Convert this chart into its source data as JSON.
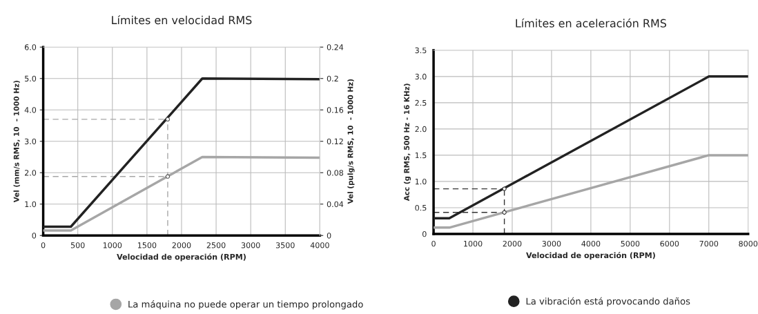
{
  "chart_data": [
    {
      "type": "line",
      "title": "Límites en velocidad RMS",
      "xlabel": "Velocidad de operación (RPM)",
      "ylabel": "Vel (mm/s RMS, 10  - 1000 Hz)",
      "y2label": "Vel (pulg/s RMS, 10  - 1000 Hz)",
      "xlim": [
        0,
        4000
      ],
      "xticks": [
        0,
        500,
        1000,
        1500,
        2000,
        2500,
        3000,
        3500,
        4000
      ],
      "ylim": [
        0,
        6
      ],
      "yticks": [
        0,
        {
          "value": 1,
          "label": "1.0"
        },
        {
          "value": 2,
          "label": "2.0"
        },
        {
          "value": 3,
          "label": "3.0"
        },
        {
          "value": 4,
          "label": "4.0"
        },
        {
          "value": 5,
          "label": "5.0"
        },
        {
          "value": 6,
          "label": "6.0"
        }
      ],
      "y2lim": [
        0,
        0.24
      ],
      "y2ticks": [
        0,
        0.04,
        0.08,
        0.12,
        0.16,
        0.2,
        0.24
      ],
      "grid": true,
      "legend": "bottom",
      "series": [
        {
          "name": "La máquina no puede operar un tiempo prolongado",
          "color": "#a6a6a6",
          "x": [
            0,
            400,
            2300,
            4000
          ],
          "values": [
            0.16,
            0.16,
            2.5,
            2.48
          ]
        },
        {
          "color": "#222222",
          "x": [
            0,
            400,
            2300,
            4000
          ],
          "values": [
            0.28,
            0.28,
            5.0,
            4.98
          ]
        },
        {
          "type": "line",
          "line_style": "dashed",
          "color": "#a6a6a6",
          "x": [
            0,
            1800
          ],
          "values": [
            3.7,
            3.7
          ]
        },
        {
          "type": "line",
          "line_style": "dashed",
          "color": "#a6a6a6",
          "x": [
            0,
            1800
          ],
          "values": [
            1.88,
            1.88
          ]
        },
        {
          "type": "line",
          "line_style": "dashed",
          "color": "#a6a6a6",
          "x": [
            1800,
            1800
          ],
          "values": [
            0,
            3.7
          ]
        },
        {
          "type": "scatter",
          "marker": "circle",
          "color": "#555555",
          "x": [
            1800,
            1800
          ],
          "values": [
            3.7,
            1.88
          ]
        }
      ]
    },
    {
      "type": "line",
      "title": "Límites en aceleración RMS",
      "xlabel": "Velocidad de operación (RPM)",
      "ylabel": "Acc (g RMS, 500 Hz - 16 KHz)",
      "xlim": [
        0,
        8000
      ],
      "xticks": [
        0,
        1000,
        2000,
        3000,
        4000,
        5000,
        6000,
        7000,
        8000
      ],
      "ylim": [
        0,
        3.5
      ],
      "yticks": [
        0,
        0.5,
        {
          "value": 1,
          "label": "1.0"
        },
        1.5,
        {
          "value": 2,
          "label": "2.0"
        },
        2.5,
        {
          "value": 3,
          "label": "3.0"
        },
        3.5
      ],
      "grid": true,
      "legend": "bottom",
      "series": [
        {
          "color": "#a6a6a6",
          "x": [
            0,
            400,
            7000,
            8000
          ],
          "values": [
            0.12,
            0.12,
            1.5,
            1.5
          ]
        },
        {
          "name": "La vibración está provocando daños",
          "color": "#222222",
          "x": [
            0,
            400,
            7000,
            8000
          ],
          "values": [
            0.3,
            0.3,
            3.0,
            3.0
          ]
        },
        {
          "type": "line",
          "line_style": "dashed",
          "color": "#333333",
          "x": [
            0,
            1800
          ],
          "values": [
            0.86,
            0.86
          ]
        },
        {
          "type": "line",
          "line_style": "dashed",
          "color": "#333333",
          "x": [
            0,
            1800
          ],
          "values": [
            0.41,
            0.41
          ]
        },
        {
          "type": "line",
          "line_style": "dashed",
          "color": "#333333",
          "x": [
            1800,
            1800
          ],
          "values": [
            0,
            0.86
          ]
        },
        {
          "type": "scatter",
          "marker": "circle",
          "color": "#333333",
          "x": [
            1800,
            1800
          ],
          "values": [
            0.86,
            0.41
          ]
        }
      ]
    }
  ]
}
